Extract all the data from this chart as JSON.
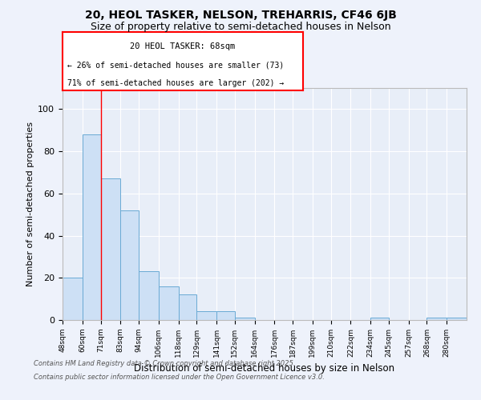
{
  "title1": "20, HEOL TASKER, NELSON, TREHARRIS, CF46 6JB",
  "title2": "Size of property relative to semi-detached houses in Nelson",
  "xlabel": "Distribution of semi-detached houses by size in Nelson",
  "ylabel": "Number of semi-detached properties",
  "bins": [
    48,
    60,
    71,
    83,
    94,
    106,
    118,
    129,
    141,
    152,
    164,
    176,
    187,
    199,
    210,
    222,
    234,
    245,
    257,
    268,
    280
  ],
  "counts": [
    20,
    88,
    67,
    52,
    23,
    16,
    12,
    4,
    4,
    1,
    0,
    0,
    0,
    0,
    0,
    0,
    1,
    0,
    0,
    1,
    1
  ],
  "bar_color": "#cde0f5",
  "bar_edge_color": "#6aaad4",
  "red_line_x": 71,
  "annotation_title": "20 HEOL TASKER: 68sqm",
  "annotation_line2": "← 26% of semi-detached houses are smaller (73)",
  "annotation_line3": "71% of semi-detached houses are larger (202) →",
  "footer1": "Contains HM Land Registry data © Crown copyright and database right 2025.",
  "footer2": "Contains public sector information licensed under the Open Government Licence v3.0.",
  "ylim": [
    0,
    110
  ],
  "yticks": [
    0,
    20,
    40,
    60,
    80,
    100
  ],
  "background_color": "#eef2fb",
  "plot_background": "#e8eef8"
}
